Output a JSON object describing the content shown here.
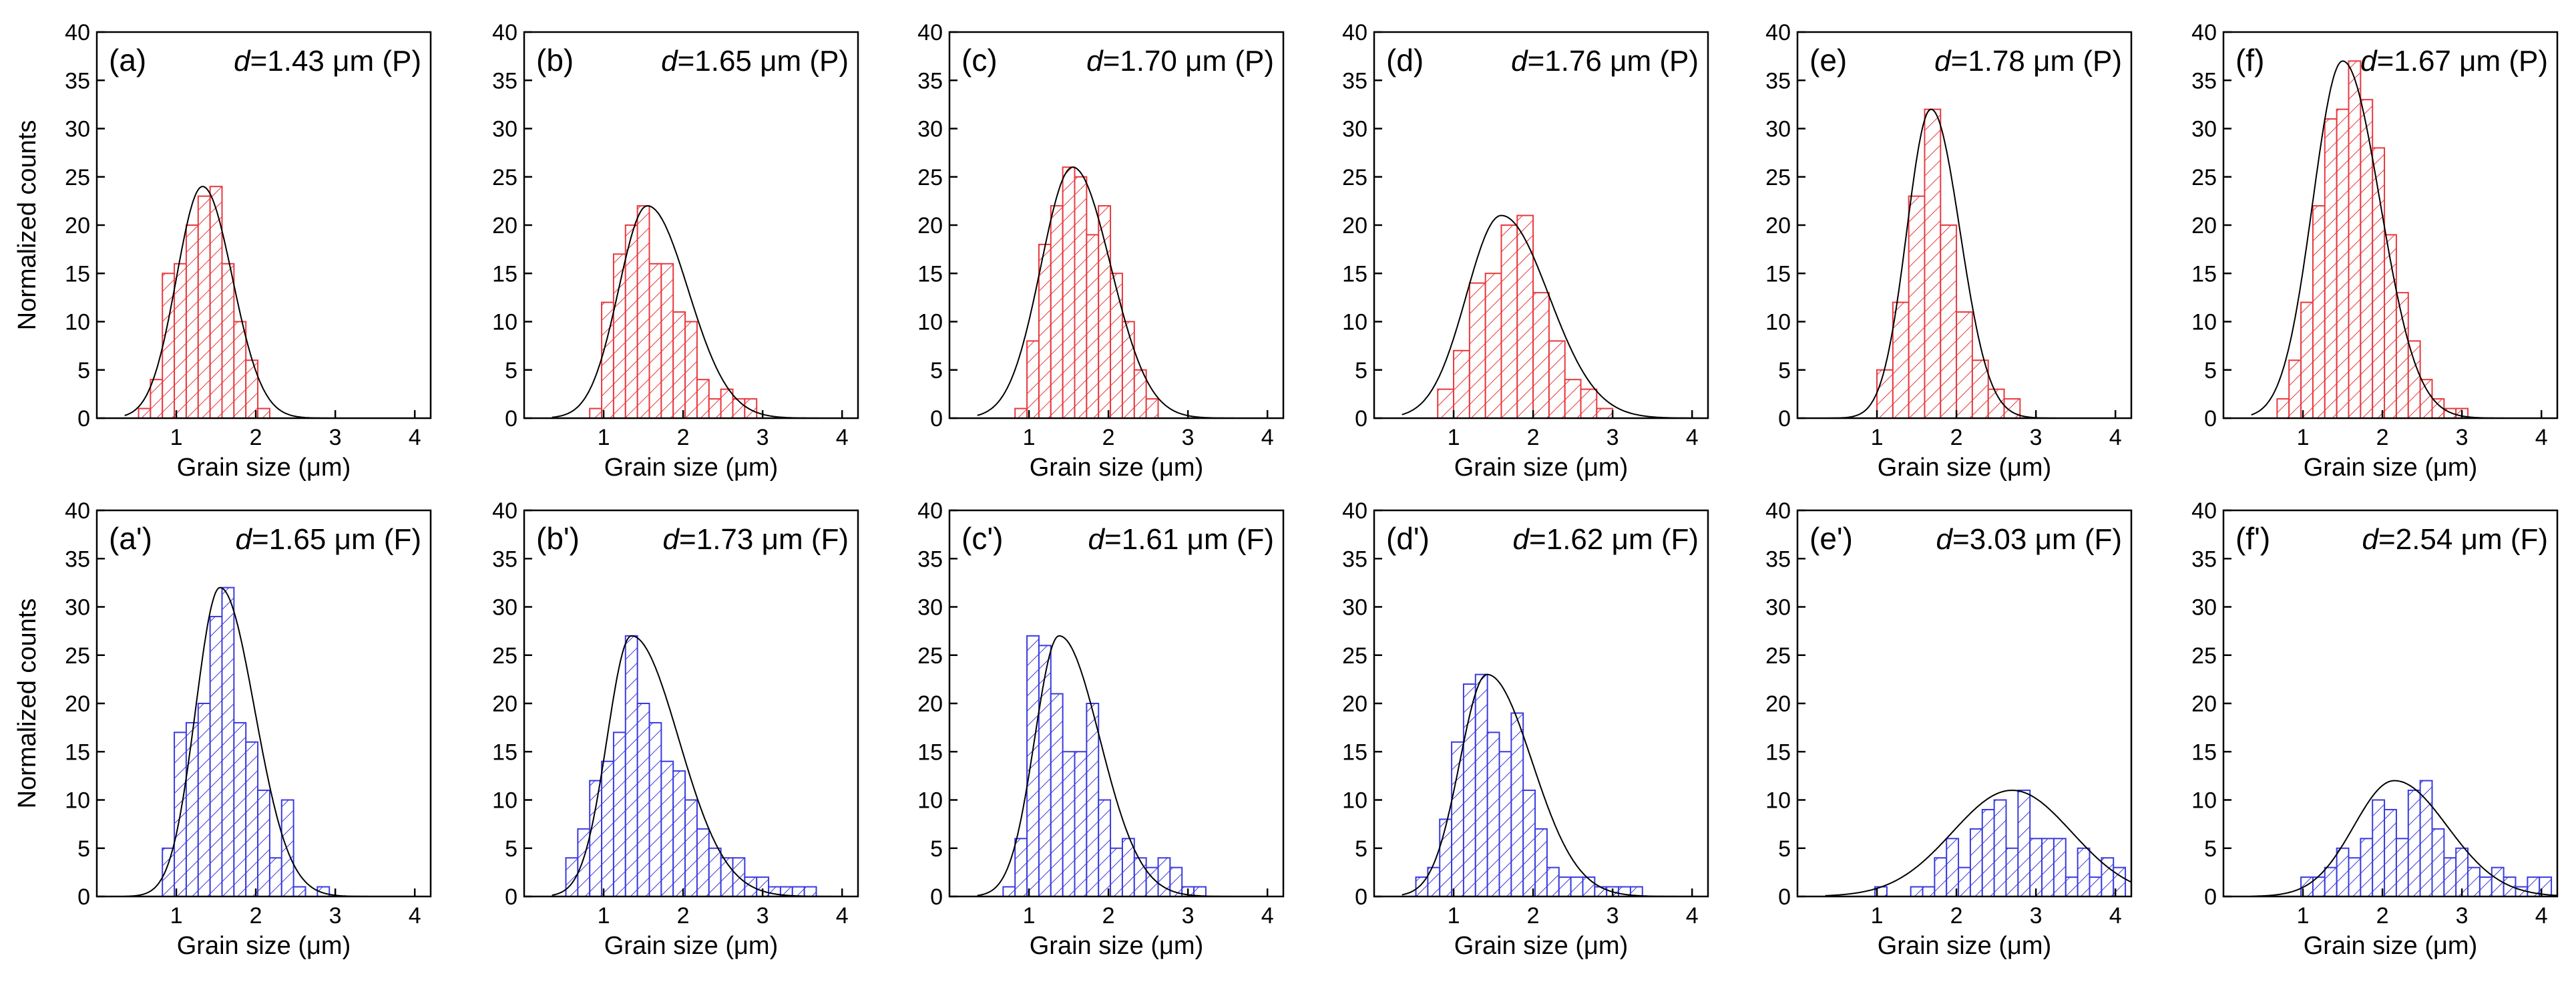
{
  "colors": {
    "P": "#e8383d",
    "F": "#3a3ae0"
  },
  "axis_defaults": {
    "xlim": [
      0,
      4.2
    ],
    "ylim": [
      0,
      40
    ],
    "xticks": [
      1,
      2,
      3,
      4
    ],
    "yticks": [
      0,
      5,
      10,
      15,
      20,
      25,
      30,
      35,
      40
    ]
  },
  "chart_data": [
    {
      "type": "bar",
      "panel_label": "(a)",
      "d_value": "1.43",
      "unit_label": "μm (P)",
      "xlabel": "Grain size (μm)",
      "ylabel": "Normalized counts",
      "series": "P",
      "bin_width": 0.15,
      "bin_centers": [
        0.6,
        0.75,
        0.9,
        1.05,
        1.2,
        1.35,
        1.5,
        1.65,
        1.8,
        1.95,
        2.1
      ],
      "values": [
        1,
        4,
        15,
        16,
        20,
        23,
        24,
        16,
        10,
        6,
        1
      ],
      "fit": {
        "peak_x": 1.33,
        "peak_y": 24,
        "sigma": 0.34,
        "skew": 0.3
      }
    },
    {
      "type": "bar",
      "panel_label": "(b)",
      "d_value": "1.65",
      "unit_label": "μm (P)",
      "xlabel": "Grain size (μm)",
      "ylabel": "",
      "series": "P",
      "bin_width": 0.15,
      "bin_centers": [
        0.9,
        1.05,
        1.2,
        1.35,
        1.5,
        1.65,
        1.8,
        1.95,
        2.1,
        2.25,
        2.4,
        2.55,
        2.7,
        2.85
      ],
      "values": [
        1,
        12,
        17,
        20,
        22,
        16,
        16,
        11,
        10,
        4,
        2,
        3,
        2,
        2
      ],
      "fit": {
        "peak_x": 1.55,
        "peak_y": 22,
        "sigma": 0.4,
        "skew": 0.8
      }
    },
    {
      "type": "bar",
      "panel_label": "(c)",
      "d_value": "1.70",
      "unit_label": "μm (P)",
      "xlabel": "Grain size (μm)",
      "ylabel": "",
      "series": "P",
      "bin_width": 0.15,
      "bin_centers": [
        0.9,
        1.05,
        1.2,
        1.35,
        1.5,
        1.65,
        1.8,
        1.95,
        2.1,
        2.25,
        2.4,
        2.55
      ],
      "values": [
        1,
        8,
        18,
        22,
        26,
        25,
        19,
        22,
        15,
        10,
        5,
        2
      ],
      "fit": {
        "peak_x": 1.55,
        "peak_y": 26,
        "sigma": 0.42,
        "skew": 0.4
      }
    },
    {
      "type": "bar",
      "panel_label": "(d)",
      "d_value": "1.76",
      "unit_label": "μm (P)",
      "xlabel": "Grain size (μm)",
      "ylabel": "",
      "series": "P",
      "bin_width": 0.2,
      "bin_centers": [
        0.9,
        1.1,
        1.3,
        1.5,
        1.7,
        1.9,
        2.1,
        2.3,
        2.5,
        2.7,
        2.9
      ],
      "values": [
        3,
        7,
        14,
        15,
        20,
        21,
        13,
        8,
        4,
        3,
        1
      ],
      "fit": {
        "peak_x": 1.6,
        "peak_y": 21,
        "sigma": 0.48,
        "skew": 0.7
      }
    },
    {
      "type": "bar",
      "panel_label": "(e)",
      "d_value": "1.78",
      "unit_label": "μm (P)",
      "xlabel": "Grain size (μm)",
      "ylabel": "",
      "series": "P",
      "bin_width": 0.2,
      "bin_centers": [
        1.1,
        1.3,
        1.5,
        1.7,
        1.9,
        2.1,
        2.3,
        2.5,
        2.7
      ],
      "values": [
        5,
        12,
        23,
        32,
        20,
        11,
        6,
        3,
        2
      ],
      "fit": {
        "peak_x": 1.68,
        "peak_y": 32,
        "sigma": 0.32,
        "skew": 0.4
      }
    },
    {
      "type": "bar",
      "panel_label": "(f)",
      "d_value": "1.67",
      "unit_label": "μm (P)",
      "xlabel": "Grain size (μm)",
      "ylabel": "",
      "series": "P",
      "bin_width": 0.15,
      "bin_centers": [
        0.75,
        0.9,
        1.05,
        1.2,
        1.35,
        1.5,
        1.65,
        1.8,
        1.95,
        2.1,
        2.25,
        2.4,
        2.55,
        2.7,
        2.85,
        3.0
      ],
      "values": [
        2,
        6,
        12,
        22,
        31,
        32,
        37,
        33,
        28,
        19,
        13,
        8,
        4,
        2,
        1,
        1
      ],
      "fit": {
        "peak_x": 1.5,
        "peak_y": 37,
        "sigma": 0.4,
        "skew": 0.5
      }
    },
    {
      "type": "bar",
      "panel_label": "(a')",
      "d_value": "1.65",
      "unit_label": "μm (F)",
      "xlabel": "Grain size (μm)",
      "ylabel": "Normalized counts",
      "series": "F",
      "bin_width": 0.15,
      "bin_centers": [
        0.9,
        1.05,
        1.2,
        1.35,
        1.5,
        1.65,
        1.8,
        1.95,
        2.1,
        2.25,
        2.4,
        2.55,
        2.7,
        2.85
      ],
      "values": [
        5,
        17,
        18,
        20,
        29,
        32,
        18,
        16,
        11,
        4,
        10,
        1,
        0,
        1
      ],
      "fit": {
        "peak_x": 1.55,
        "peak_y": 32,
        "sigma": 0.34,
        "skew": 0.8
      }
    },
    {
      "type": "bar",
      "panel_label": "(b')",
      "d_value": "1.73",
      "unit_label": "μm (F)",
      "xlabel": "Grain size (μm)",
      "ylabel": "",
      "series": "F",
      "bin_width": 0.15,
      "bin_centers": [
        0.6,
        0.75,
        0.9,
        1.05,
        1.2,
        1.35,
        1.5,
        1.65,
        1.8,
        1.95,
        2.1,
        2.25,
        2.4,
        2.55,
        2.7,
        2.85,
        3.0,
        3.15,
        3.3,
        3.45,
        3.6
      ],
      "values": [
        4,
        7,
        12,
        14,
        17,
        27,
        20,
        18,
        14,
        13,
        10,
        7,
        5,
        4,
        4,
        2,
        2,
        1,
        1,
        1,
        1
      ],
      "fit": {
        "peak_x": 1.35,
        "peak_y": 27,
        "sigma": 0.38,
        "skew": 1.6
      }
    },
    {
      "type": "bar",
      "panel_label": "(c')",
      "d_value": "1.61",
      "unit_label": "μm (F)",
      "xlabel": "Grain size (μm)",
      "ylabel": "",
      "series": "F",
      "bin_width": 0.15,
      "bin_centers": [
        0.75,
        0.9,
        1.05,
        1.2,
        1.35,
        1.5,
        1.65,
        1.8,
        1.95,
        2.1,
        2.25,
        2.4,
        2.55,
        2.7,
        2.85,
        3.0,
        3.15
      ],
      "values": [
        1,
        6,
        27,
        26,
        21,
        15,
        15,
        20,
        10,
        5,
        6,
        4,
        3,
        4,
        3,
        1,
        1
      ],
      "fit": {
        "peak_x": 1.38,
        "peak_y": 27,
        "sigma": 0.36,
        "skew": 1.2
      }
    },
    {
      "type": "bar",
      "panel_label": "(d')",
      "d_value": "1.62",
      "unit_label": "μm (F)",
      "xlabel": "Grain size (μm)",
      "ylabel": "",
      "series": "F",
      "bin_width": 0.15,
      "bin_centers": [
        0.6,
        0.75,
        0.9,
        1.05,
        1.2,
        1.35,
        1.5,
        1.65,
        1.8,
        1.95,
        2.1,
        2.25,
        2.4,
        2.55,
        2.7,
        2.85,
        3.0,
        3.15,
        3.3
      ],
      "values": [
        2,
        3,
        8,
        16,
        22,
        23,
        17,
        15,
        19,
        11,
        7,
        3,
        2,
        2,
        2,
        1,
        1,
        1,
        1
      ],
      "fit": {
        "peak_x": 1.42,
        "peak_y": 23,
        "sigma": 0.4,
        "skew": 1.2
      }
    },
    {
      "type": "bar",
      "panel_label": "(e')",
      "d_value": "3.03",
      "unit_label": "μm (F)",
      "xlabel": "Grain size (μm)",
      "ylabel": "",
      "series": "F",
      "bin_width": 0.15,
      "bin_centers": [
        1.05,
        1.2,
        1.35,
        1.5,
        1.65,
        1.8,
        1.95,
        2.1,
        2.25,
        2.4,
        2.55,
        2.7,
        2.85,
        3.0,
        3.15,
        3.3,
        3.45,
        3.6,
        3.75,
        3.9,
        4.05
      ],
      "values": [
        1,
        0,
        0,
        1,
        1,
        4,
        6,
        3,
        7,
        9,
        10,
        5,
        11,
        6,
        6,
        6,
        2,
        5,
        2,
        4,
        3
      ],
      "fit": {
        "peak_x": 2.7,
        "peak_y": 11,
        "sigma": 0.75,
        "skew": 0
      }
    },
    {
      "type": "bar",
      "panel_label": "(f')",
      "d_value": "2.54",
      "unit_label": "μm (F)",
      "xlabel": "Grain size (μm)",
      "ylabel": "",
      "series": "F",
      "bin_width": 0.15,
      "bin_centers": [
        1.05,
        1.2,
        1.35,
        1.5,
        1.65,
        1.8,
        1.95,
        2.1,
        2.25,
        2.4,
        2.55,
        2.7,
        2.85,
        3.0,
        3.15,
        3.3,
        3.45,
        3.6,
        3.75,
        3.9,
        4.05
      ],
      "values": [
        2,
        2,
        3,
        5,
        4,
        6,
        10,
        9,
        6,
        11,
        12,
        7,
        4,
        5,
        3,
        2,
        3,
        2,
        1,
        2,
        2
      ],
      "fit": {
        "peak_x": 2.15,
        "peak_y": 12,
        "sigma": 0.55,
        "skew": 0.6
      }
    }
  ]
}
